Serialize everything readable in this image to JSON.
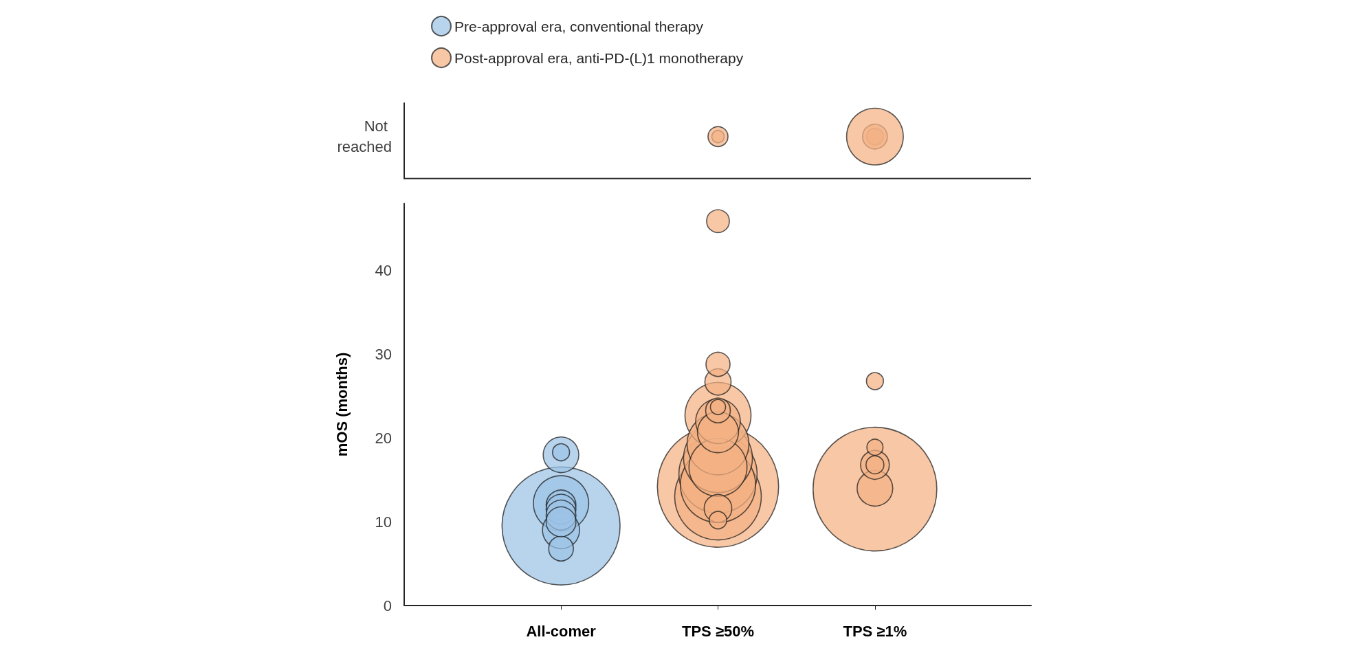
{
  "chart_data": {
    "type": "bubble",
    "ylabel": "mOS (months)",
    "categories": [
      "All-comer",
      "TPS ≥50%",
      "TPS ≥1%"
    ],
    "ylim": [
      0,
      60
    ],
    "yticks": [
      0,
      10,
      20,
      30,
      40,
      {
        "value": 56,
        "label": "Not reached"
      }
    ],
    "legend": "top",
    "series": [
      {
        "name": "Pre-approval era, conventional therapy",
        "color": "#9dc3e6",
        "x": [
          "All-comer",
          "All-comer",
          "All-comer",
          "All-comer",
          "All-comer",
          "All-comer",
          "All-comer",
          "All-comer",
          "All-comer",
          "All-comer"
        ],
        "values": [
          9.5,
          12.2,
          18.0,
          18.3,
          9.0,
          6.8,
          12.0,
          11.5,
          10.8,
          10.0
        ],
        "sizes": [
          0.91,
          0.2,
          0.083,
          0.019,
          0.09,
          0.04,
          0.058,
          0.058,
          0.058,
          0.058
        ]
      },
      {
        "name": "Post-approval era, anti-PD-(L)1 monotherapy",
        "color": "#f4b183",
        "x": [
          "TPS ≥50%",
          "TPS ≥50%",
          "TPS ≥50%",
          "TPS ≥50%",
          "TPS ≥50%",
          "TPS ≥50%",
          "TPS ≥50%",
          "TPS ≥50%",
          "TPS ≥50%",
          "TPS ≥50%",
          "TPS ≥50%",
          "TPS ≥50%",
          "TPS ≥50%",
          "TPS ≥50%",
          "TPS ≥50%",
          "TPS ≥50%",
          "TPS ≥50%",
          "TPS ≥1%",
          "TPS ≥1%",
          "TPS ≥1%",
          "TPS ≥1%",
          "TPS ≥1%",
          "TPS ≥1%",
          "TPS ≥1%",
          "TPS ≥1%",
          "TPS ≥1%",
          "TPS ≥50%",
          "TPS ≥50%"
        ],
        "values": [
          14.2,
          13.0,
          15.7,
          14.4,
          17.6,
          22.7,
          19.3,
          16.5,
          22.0,
          20.7,
          11.6,
          10.2,
          23.3,
          23.7,
          26.7,
          28.8,
          45.9,
          13.9,
          14.0,
          16.8,
          16.8,
          18.9,
          26.8,
          56,
          56,
          56,
          56,
          56
        ],
        "sizes": [
          0.96,
          0.49,
          0.4,
          0.37,
          0.31,
          0.285,
          0.25,
          0.22,
          0.13,
          0.11,
          0.05,
          0.02,
          0.04,
          0.015,
          0.045,
          0.038,
          0.034,
          1,
          0.083,
          0.054,
          0.021,
          0.017,
          0.019,
          0.018,
          0.04,
          0.21,
          0.01,
          0.026
        ]
      }
    ],
    "ref_lines": [
      {
        "axis": "y",
        "value": 51,
        "color": "#262626"
      }
    ]
  }
}
